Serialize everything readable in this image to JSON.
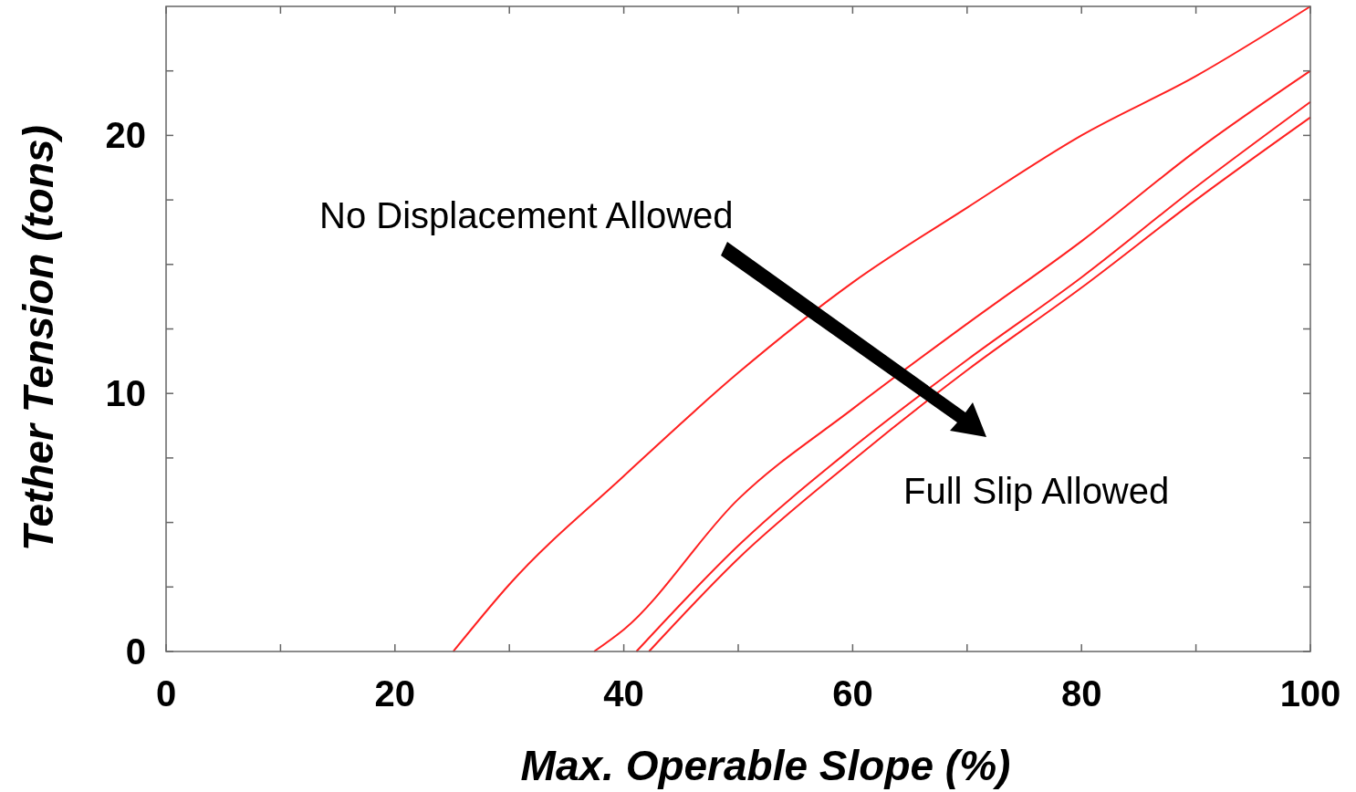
{
  "chart_data": {
    "type": "line",
    "xlabel": "Max. Operable Slope (%)",
    "ylabel": "Tether Tension (tons)",
    "xlim": [
      0,
      100
    ],
    "ylim": [
      0,
      25
    ],
    "xticks": [
      0,
      {
        "value": 10,
        "label": null
      },
      20,
      {
        "value": 30,
        "label": null
      },
      40,
      {
        "value": 50,
        "label": null
      },
      60,
      {
        "value": 70,
        "label": null
      },
      80,
      {
        "value": 90,
        "label": null
      },
      100
    ],
    "yticks": [
      0,
      {
        "value": 2.5,
        "label": null
      },
      {
        "value": 5,
        "label": null
      },
      {
        "value": 7.5,
        "label": null
      },
      10,
      {
        "value": 12.5,
        "label": null
      },
      {
        "value": 15,
        "label": null
      },
      {
        "value": 17.5,
        "label": null
      },
      20,
      {
        "value": 22.5,
        "label": null
      }
    ],
    "grid": false,
    "marker": "none",
    "line_style": "solid",
    "annotations": [
      "No Displacement Allowed",
      "Full Slip Allowed"
    ],
    "series": [
      {
        "color": "#ff2020",
        "x": [
          25.1,
          30,
          40,
          50,
          60,
          70,
          80,
          90,
          100
        ],
        "values": [
          0,
          2.6,
          6.8,
          10.8,
          14.3,
          17.2,
          20.0,
          22.3,
          25.0
        ]
      },
      {
        "color": "#ff2020",
        "x": [
          37.4,
          40,
          50,
          60,
          70,
          80,
          90,
          100
        ],
        "values": [
          0,
          0.85,
          5.9,
          9.4,
          12.7,
          15.9,
          19.4,
          22.5
        ]
      },
      {
        "color": "#ff2020",
        "x": [
          41.1,
          50,
          60,
          70,
          80,
          90,
          100
        ],
        "values": [
          0,
          4.1,
          7.9,
          11.3,
          14.5,
          18.0,
          21.3
        ]
      },
      {
        "color": "#ff2020",
        "x": [
          42.2,
          50,
          60,
          70,
          80,
          90,
          100
        ],
        "values": [
          0,
          3.6,
          7.4,
          10.9,
          14.1,
          17.5,
          20.7
        ]
      }
    ]
  }
}
